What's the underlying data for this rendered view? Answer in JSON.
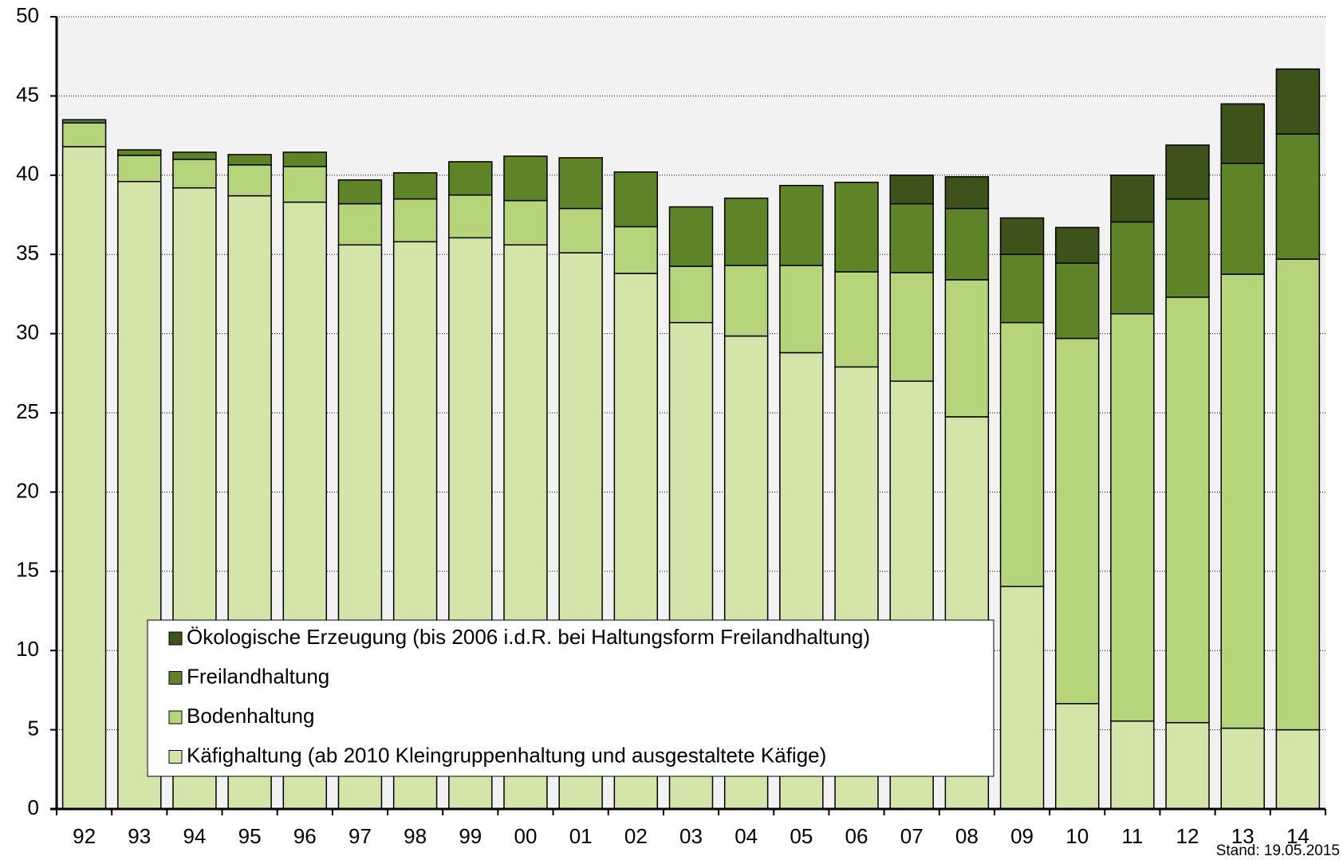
{
  "chart_data": {
    "type": "stacked_bar",
    "categories": [
      "92",
      "93",
      "94",
      "95",
      "96",
      "97",
      "98",
      "99",
      "00",
      "01",
      "02",
      "03",
      "04",
      "05",
      "06",
      "07",
      "08",
      "09",
      "10",
      "11",
      "12",
      "13",
      "14"
    ],
    "series": [
      {
        "name": "Käfighaltung (ab 2010 Kleingruppenhaltung und ausgestaltete Käfige)",
        "color": "#d3e5a8",
        "values": [
          41.8,
          39.6,
          39.2,
          38.7,
          38.3,
          35.6,
          35.8,
          36.05,
          35.6,
          35.1,
          33.8,
          30.7,
          29.85,
          28.8,
          27.9,
          27.0,
          24.75,
          14.05,
          6.65,
          5.55,
          5.45,
          5.1,
          5.0
        ]
      },
      {
        "name": "Bodenhaltung",
        "color": "#b6d57b",
        "values": [
          1.5,
          1.65,
          1.8,
          1.95,
          2.25,
          2.6,
          2.7,
          2.7,
          2.8,
          2.8,
          2.95,
          3.55,
          4.45,
          5.5,
          6.0,
          6.85,
          8.65,
          16.65,
          23.05,
          25.7,
          26.85,
          28.65,
          29.7
        ]
      },
      {
        "name": "Freilandhaltung",
        "color": "#5f8327",
        "values": [
          0.2,
          0.35,
          0.45,
          0.65,
          0.9,
          1.5,
          1.65,
          2.1,
          2.8,
          3.2,
          3.45,
          3.75,
          4.25,
          5.05,
          5.65,
          4.35,
          4.5,
          4.3,
          4.75,
          5.8,
          6.2,
          7.0,
          7.9
        ]
      },
      {
        "name": "Ökologische Erzeugung (bis 2006 i.d.R. bei Haltungsform Freilandhaltung)",
        "color": "#3e531a",
        "values": [
          0,
          0,
          0,
          0,
          0,
          0,
          0,
          0,
          0,
          0,
          0,
          0,
          0,
          0,
          0,
          1.8,
          2.0,
          2.3,
          2.25,
          2.95,
          3.4,
          3.75,
          4.1
        ]
      }
    ],
    "ylim": [
      0,
      50
    ],
    "yticks": [
      0,
      5,
      10,
      15,
      20,
      25,
      30,
      35,
      40,
      45,
      50
    ],
    "grid": true,
    "annotation": "Stand: 19.05.2015"
  }
}
